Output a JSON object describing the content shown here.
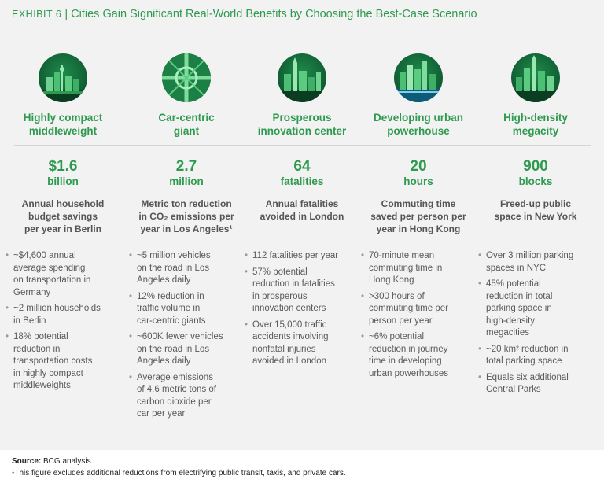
{
  "title": {
    "exhibit": "EXHIBIT 6",
    "separator": "|",
    "text": "Cities Gain Significant Real-World Benefits by Choosing the Best-Case Scenario"
  },
  "columns": [
    {
      "icon": "city-skyline-tv-tower-icon",
      "name": [
        "Highly compact",
        "middleweight"
      ],
      "value": "$1.6",
      "unit": "billion",
      "description": [
        "Annual household",
        "budget savings",
        "per year in Berlin"
      ],
      "bullets": [
        [
          "~$4,600 annual",
          "average spending",
          "on transportation in",
          "Germany"
        ],
        [
          "~2 million households",
          "in Berlin"
        ],
        [
          "18% potential",
          "reduction in",
          "transportation costs",
          "in highly compact",
          "middleweights"
        ]
      ]
    },
    {
      "icon": "highway-interchange-icon",
      "name": [
        "Car-centric",
        "giant"
      ],
      "value": "2.7",
      "unit": "million",
      "description": [
        "Metric ton reduction",
        "in CO₂ emissions per",
        "year in Los Angeles¹"
      ],
      "bullets": [
        [
          "~5 million vehicles",
          "on the road in Los",
          "Angeles daily"
        ],
        [
          "12% reduction in",
          "traffic volume in",
          "car-centric giants"
        ],
        [
          "~600K fewer vehicles",
          "on the road in Los",
          "Angeles daily"
        ],
        [
          "Average emissions",
          "of 4.6 metric tons of",
          "carbon dioxide per",
          "car per year"
        ]
      ]
    },
    {
      "icon": "innovation-city-skyline-icon",
      "name": [
        "Prosperous",
        "innovation center"
      ],
      "value": "64",
      "unit": "fatalities",
      "description": [
        "Annual fatalities",
        "avoided in London"
      ],
      "bullets": [
        [
          "112 fatalities per year"
        ],
        [
          "57% potential",
          "reduction in fatalities",
          "in prosperous",
          "innovation centers"
        ],
        [
          "Over 15,000 traffic",
          "accidents involving",
          "nonfatal injuries",
          "avoided in London"
        ]
      ]
    },
    {
      "icon": "waterfront-skyline-icon",
      "name": [
        "Developing urban",
        "powerhouse"
      ],
      "value": "20",
      "unit": "hours",
      "description": [
        "Commuting time",
        "saved per person per",
        "year in Hong Kong"
      ],
      "bullets": [
        [
          "70-minute mean",
          "commuting time in",
          "Hong Kong"
        ],
        [
          ">300 hours of",
          "commuting time per",
          "person per year"
        ],
        [
          "~6% potential",
          "reduction in journey",
          "time in developing",
          "urban powerhouses"
        ]
      ]
    },
    {
      "icon": "megacity-skyline-icon",
      "name": [
        "High-density",
        "megacity"
      ],
      "value": "900",
      "unit": "blocks",
      "description": [
        "Freed-up public",
        "space in New York"
      ],
      "bullets": [
        [
          "Over 3 million parking",
          "spaces in NYC"
        ],
        [
          "45% potential",
          "reduction in total",
          "parking space in",
          "high-density",
          "megacities"
        ],
        [
          "~20 km² reduction in",
          "total parking space"
        ],
        [
          "Equals six additional",
          "Central Parks"
        ]
      ]
    }
  ],
  "source": {
    "label": "Source:",
    "text": "BCG analysis."
  },
  "footnote": "¹This figure excludes additional reductions from electrifying public transit, taxis, and private cars."
}
